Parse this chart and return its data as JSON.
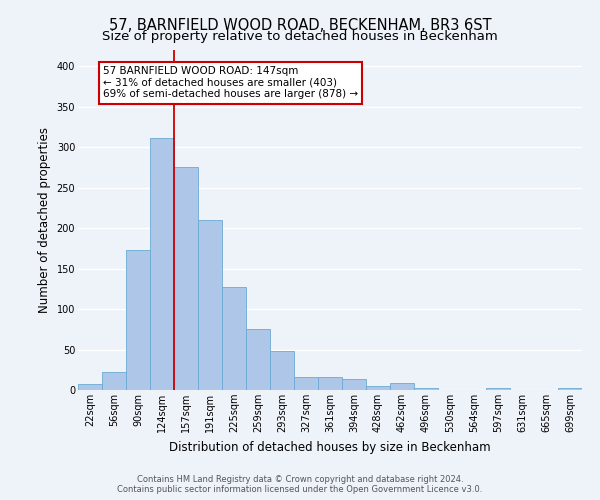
{
  "title": "57, BARNFIELD WOOD ROAD, BECKENHAM, BR3 6ST",
  "subtitle": "Size of property relative to detached houses in Beckenham",
  "xlabel": "Distribution of detached houses by size in Beckenham",
  "ylabel": "Number of detached properties",
  "bar_labels": [
    "22sqm",
    "56sqm",
    "90sqm",
    "124sqm",
    "157sqm",
    "191sqm",
    "225sqm",
    "259sqm",
    "293sqm",
    "327sqm",
    "361sqm",
    "394sqm",
    "428sqm",
    "462sqm",
    "496sqm",
    "530sqm",
    "564sqm",
    "597sqm",
    "631sqm",
    "665sqm",
    "699sqm"
  ],
  "bar_values": [
    8,
    22,
    173,
    311,
    275,
    210,
    127,
    75,
    48,
    16,
    16,
    14,
    5,
    9,
    2,
    0,
    0,
    3,
    0,
    0,
    3
  ],
  "bar_color": "#aec6e8",
  "bar_edge_color": "#6aaad4",
  "vline_color": "#cc0000",
  "vline_x_index": 4,
  "ylim": [
    0,
    420
  ],
  "yticks": [
    0,
    50,
    100,
    150,
    200,
    250,
    300,
    350,
    400
  ],
  "annotation_title": "57 BARNFIELD WOOD ROAD: 147sqm",
  "annotation_line1": "← 31% of detached houses are smaller (403)",
  "annotation_line2": "69% of semi-detached houses are larger (878) →",
  "annotation_box_color": "#cc0000",
  "footer_line1": "Contains HM Land Registry data © Crown copyright and database right 2024.",
  "footer_line2": "Contains public sector information licensed under the Open Government Licence v3.0.",
  "background_color": "#eef2f9",
  "grid_color": "#ffffff",
  "title_fontsize": 10.5,
  "subtitle_fontsize": 9.5,
  "axis_label_fontsize": 8.5,
  "tick_fontsize": 7,
  "footer_fontsize": 6,
  "annotation_fontsize": 7.5
}
